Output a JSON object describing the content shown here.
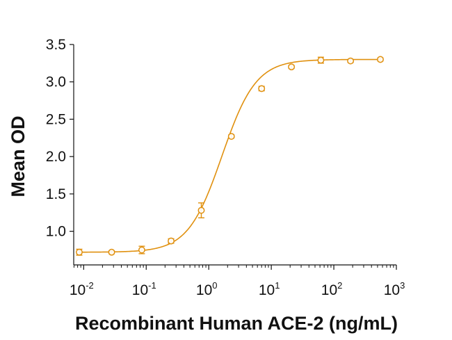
{
  "chart_data": {
    "type": "scatter",
    "xlabel": "Recombinant Human ACE-2 (ng/mL)",
    "ylabel": "Mean OD",
    "x_scale": "log",
    "xlim": [
      0.00693,
      1000
    ],
    "ylim": [
      0.55,
      3.5
    ],
    "x_ticks": [
      {
        "value": 0.01,
        "base": "10",
        "exp": "-2"
      },
      {
        "value": 0.1,
        "base": "10",
        "exp": "-1"
      },
      {
        "value": 1,
        "base": "10",
        "exp": "0"
      },
      {
        "value": 10,
        "base": "10",
        "exp": "1"
      },
      {
        "value": 100,
        "base": "10",
        "exp": "2"
      },
      {
        "value": 1000,
        "base": "10",
        "exp": "3"
      }
    ],
    "y_ticks": [
      "1.0",
      "1.5",
      "2.0",
      "2.5",
      "3.0",
      "3.5"
    ],
    "grid": false,
    "legend": "none",
    "color": "#E0900E",
    "series": [
      {
        "x": [
          0.0085,
          0.028,
          0.085,
          0.25,
          0.76,
          2.3,
          7.0,
          21,
          62,
          185,
          555
        ],
        "y": [
          0.72,
          0.72,
          0.75,
          0.87,
          1.28,
          2.27,
          2.91,
          3.2,
          3.29,
          3.28,
          3.3
        ],
        "err": [
          0.04,
          0.02,
          0.05,
          0.03,
          0.1,
          0.02,
          0.03,
          0.02,
          0.04,
          0.02,
          0.02
        ]
      }
    ],
    "fit": {
      "bottom": 0.72,
      "top": 3.3,
      "ec50": 1.63,
      "hill": 1.6
    }
  }
}
